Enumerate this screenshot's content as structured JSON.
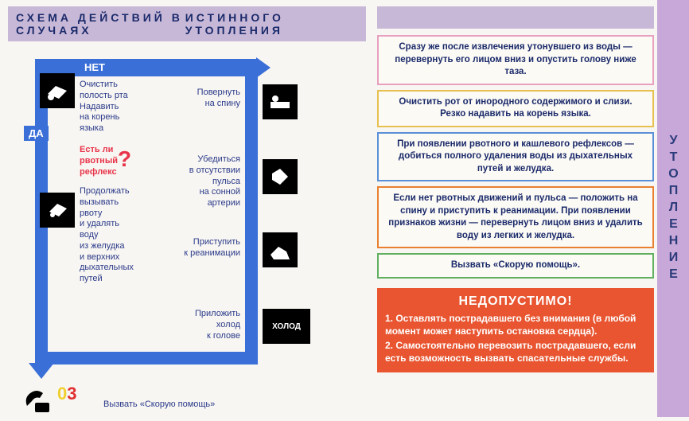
{
  "title": {
    "left": "СХЕМА ДЕЙСТВИЙ В СЛУЧАЯХ",
    "right": "ИСТИННОГО УТОПЛЕНИЯ"
  },
  "side_tab": "УТОПЛЕНИЕ",
  "flow": {
    "no_label": "НЕТ",
    "yes_label": "ДА",
    "step1": "Очистить\nполость рта\nНадавить\nна корень\nязыка",
    "question": "Есть ли\nрвотный\nрефлекс",
    "step2": "Продолжать\nвызывать\nрвоту\nи удалять\nводу\nиз желудка\nи верхних\nдыхательных\nпутей",
    "turn_back": "Повернуть\nна спину",
    "pulse": "Убедиться\nв отсутствии\nпульса\nна сонной\nартерии",
    "reanim": "Приступить\nк реанимации",
    "cold": "Приложить\nхолод\nк голове",
    "holod": "ХОЛОД",
    "call": "Вызвать «Скорую помощь»"
  },
  "info_boxes": [
    {
      "text": "Сразу же после извлечения утонувшего из воды — перевернуть его лицом вниз и опустить голову ниже таза.",
      "border": "#e8a0c0"
    },
    {
      "text": "Очистить рот от инородного содержимого и слизи. Резко надавить на корень языка.",
      "border": "#e8c050"
    },
    {
      "text": "При появлении рвотного и кашлевого рефлексов — добиться полного удаления воды из дыхательных путей и желудка.",
      "border": "#5a90d8"
    },
    {
      "text": "Если нет рвотных движений и пульса — положить на спину и приступить к реанимации. При появлении признаков жизни — перевернуть лицом вниз и удалить воду из легких и желудка.",
      "border": "#e88030"
    },
    {
      "text": "Вызвать «Скорую помощь».",
      "border": "#60b060"
    }
  ],
  "warn": {
    "title": "НЕДОПУСТИМО!",
    "items": [
      "1. Оставлять пострадавшего без внимания (в любой момент может наступить остановка сердца).",
      "2. Самостоятельно перевозить пострадавшего, если есть возможность вызвать спасательные службы."
    ]
  },
  "colors": {
    "arrow": "#3a6fd8",
    "title_bg": "#c8b8d8",
    "tab_bg": "#c8a8d8",
    "warn_bg": "#e85530",
    "text_blue": "#2a3a8a",
    "text_red": "#e8344a"
  }
}
